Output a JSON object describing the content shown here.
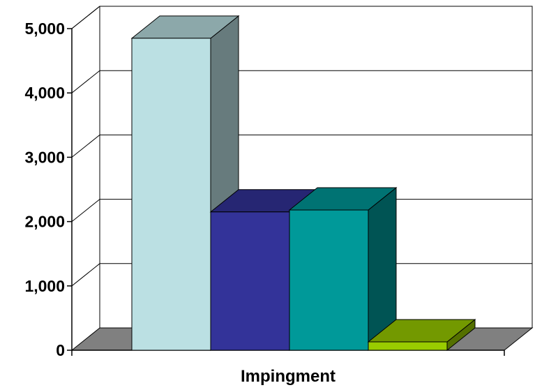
{
  "chart_data": {
    "type": "bar",
    "categories": [
      "Impingment"
    ],
    "series": [
      {
        "values": [
          4850
        ],
        "color": "#BBE0E3"
      },
      {
        "values": [
          2150
        ],
        "color": "#333399"
      },
      {
        "values": [
          2180
        ],
        "color": "#009999"
      },
      {
        "values": [
          130
        ],
        "color": "#99CC00"
      }
    ],
    "ylim": [
      0,
      5000
    ],
    "yticks": [
      0,
      1000,
      2000,
      3000,
      4000,
      5000
    ],
    "ytick_labels": [
      "0",
      "1,000",
      "2,000",
      "3,000",
      "4,000",
      "5,000"
    ],
    "title": "",
    "xlabel": "",
    "ylabel": "",
    "grid": true,
    "legend": "none",
    "three_d": true,
    "floor_color": "#808080"
  }
}
